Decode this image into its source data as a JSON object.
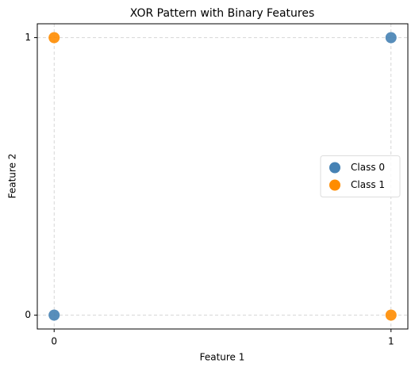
{
  "chart_data": {
    "type": "scatter",
    "title": "XOR Pattern with Binary Features",
    "x_label": "Feature 1",
    "y_label": "Feature 2",
    "series": [
      {
        "name": "Class 0",
        "color": "#4682b4",
        "x": [
          0,
          1
        ],
        "values": [
          0,
          1
        ]
      },
      {
        "name": "Class 1",
        "color": "#ff8c00",
        "x": [
          0,
          1
        ],
        "values": [
          1,
          0
        ]
      }
    ],
    "xlim": [
      -0.05,
      1.05
    ],
    "ylim": [
      -0.05,
      1.05
    ],
    "xticks": [
      0,
      1
    ],
    "yticks": [
      0,
      1
    ],
    "grid": true,
    "legend": "right"
  }
}
